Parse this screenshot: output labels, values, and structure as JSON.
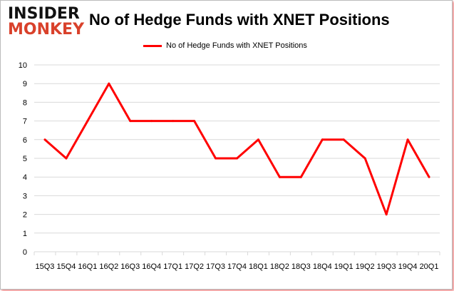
{
  "logo": {
    "line1": "INSIDER",
    "line2": "MONKEY"
  },
  "chart_data": {
    "type": "line",
    "title": "No of Hedge Funds with XNET Positions",
    "categories": [
      "15Q3",
      "15Q4",
      "16Q1",
      "16Q2",
      "16Q3",
      "16Q4",
      "17Q1",
      "17Q2",
      "17Q3",
      "17Q4",
      "18Q1",
      "18Q2",
      "18Q3",
      "18Q4",
      "19Q1",
      "19Q2",
      "19Q3",
      "19Q4",
      "20Q1"
    ],
    "series": [
      {
        "name": "No of Hedge Funds with XNET Positions",
        "color": "#ff0000",
        "values": [
          6,
          5,
          7,
          9,
          7,
          7,
          7,
          7,
          5,
          5,
          6,
          4,
          4,
          6,
          6,
          5,
          2,
          6,
          4
        ]
      }
    ],
    "ylim": [
      0,
      10
    ],
    "yticks": [
      0,
      1,
      2,
      3,
      4,
      5,
      6,
      7,
      8,
      9,
      10
    ],
    "grid": true,
    "legend": "top-center"
  }
}
